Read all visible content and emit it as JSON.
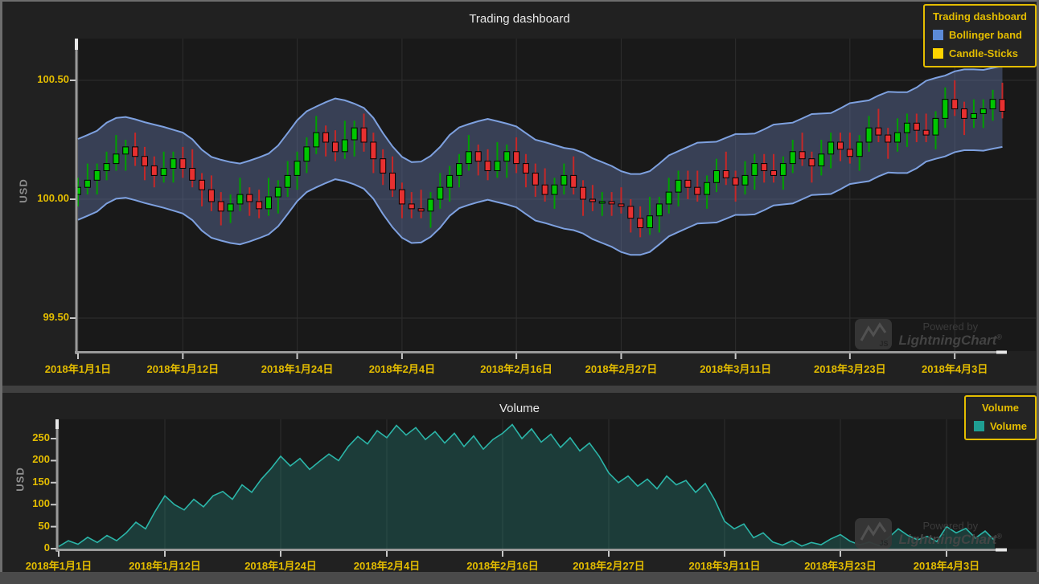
{
  "page": {
    "page_bg": "#4a4a4a",
    "panel_bg": "#212121",
    "plot_bg": "#191919",
    "frame_color": "#6e6e6e",
    "divider_color": "#404040",
    "grid_color": "#2e2e2e",
    "axis_line_color": "#9a9a9a",
    "axis_nib_color": "#e8e8e8",
    "tick_text_color": "#e4bd00",
    "title_text_color": "#e8e8e8"
  },
  "watermark": {
    "powered_by": "Powered by",
    "brand": "LightningChart",
    "reg": "®",
    "js_label": "JS"
  },
  "chart_data": [
    {
      "type": "candlestick",
      "title": "Trading dashboard",
      "y_axis": {
        "title": "USD",
        "range": [
          99.36,
          100.68
        ],
        "ticks": [
          {
            "value": 100.5,
            "label": "100.50"
          },
          {
            "value": 100.0,
            "label": "100.00"
          },
          {
            "value": 99.5,
            "label": "99.50"
          }
        ]
      },
      "x_axis": {
        "days": 98,
        "ticks": [
          {
            "day": 0,
            "label": "2018年1月1日"
          },
          {
            "day": 11,
            "label": "2018年1月12日"
          },
          {
            "day": 23,
            "label": "2018年1月24日"
          },
          {
            "day": 34,
            "label": "2018年2月4日"
          },
          {
            "day": 46,
            "label": "2018年2月16日"
          },
          {
            "day": 57,
            "label": "2018年2月27日"
          },
          {
            "day": 69,
            "label": "2018年3月11日"
          },
          {
            "day": 81,
            "label": "2018年3月23日"
          },
          {
            "day": 92,
            "label": "2018年4月3日"
          }
        ]
      },
      "legend": {
        "title": "Trading dashboard",
        "entries": [
          {
            "label": "Bollinger band",
            "color": "#5c8bd6"
          },
          {
            "label": "Candle-Sticks",
            "color": "#ffd400"
          }
        ]
      },
      "colors": {
        "up": "#00c600",
        "up_wick": "#00a000",
        "down": "#e83030",
        "down_wick": "#c62828",
        "band_line": "#7ea1e0",
        "band_fill": "rgba(99,120,170,0.42)"
      },
      "bollinger": {
        "window": 5,
        "offset": 0.17
      },
      "ohlc": [
        [
          100.02,
          100.09,
          99.97,
          100.05
        ],
        [
          100.05,
          100.15,
          100.02,
          100.08
        ],
        [
          100.08,
          100.15,
          100.02,
          100.12
        ],
        [
          100.12,
          100.2,
          100.08,
          100.15
        ],
        [
          100.15,
          100.27,
          100.12,
          100.19
        ],
        [
          100.19,
          100.25,
          100.12,
          100.22
        ],
        [
          100.22,
          100.28,
          100.14,
          100.18
        ],
        [
          100.18,
          100.22,
          100.08,
          100.14
        ],
        [
          100.14,
          100.18,
          100.05,
          100.1
        ],
        [
          100.1,
          100.2,
          100.07,
          100.13
        ],
        [
          100.13,
          100.2,
          100.07,
          100.17
        ],
        [
          100.17,
          100.22,
          100.09,
          100.13
        ],
        [
          100.13,
          100.21,
          100.05,
          100.08
        ],
        [
          100.08,
          100.11,
          99.97,
          100.04
        ],
        [
          100.04,
          100.1,
          99.95,
          99.99
        ],
        [
          99.99,
          100.03,
          99.89,
          99.95
        ],
        [
          99.95,
          100.02,
          99.9,
          99.98
        ],
        [
          99.98,
          100.09,
          99.95,
          100.02
        ],
        [
          100.02,
          100.05,
          99.93,
          99.99
        ],
        [
          99.99,
          100.04,
          99.92,
          99.96
        ],
        [
          99.96,
          100.09,
          99.93,
          100.01
        ],
        [
          100.01,
          100.08,
          99.94,
          100.05
        ],
        [
          100.05,
          100.16,
          100.01,
          100.1
        ],
        [
          100.1,
          100.2,
          100.04,
          100.16
        ],
        [
          100.16,
          100.26,
          100.11,
          100.22
        ],
        [
          100.22,
          100.35,
          100.19,
          100.28
        ],
        [
          100.28,
          100.31,
          100.18,
          100.24
        ],
        [
          100.24,
          100.29,
          100.16,
          100.2
        ],
        [
          100.2,
          100.33,
          100.17,
          100.25
        ],
        [
          100.25,
          100.33,
          100.18,
          100.3
        ],
        [
          100.3,
          100.36,
          100.2,
          100.24
        ],
        [
          100.24,
          100.28,
          100.11,
          100.17
        ],
        [
          100.17,
          100.21,
          100.06,
          100.11
        ],
        [
          100.11,
          100.18,
          100.01,
          100.04
        ],
        [
          100.04,
          100.07,
          99.92,
          99.98
        ],
        [
          99.98,
          100.03,
          99.92,
          99.96
        ],
        [
          99.96,
          100.04,
          99.92,
          99.95
        ],
        [
          99.95,
          100.03,
          99.88,
          100.0
        ],
        [
          100.0,
          100.11,
          99.96,
          100.05
        ],
        [
          100.05,
          100.14,
          99.99,
          100.1
        ],
        [
          100.1,
          100.19,
          100.05,
          100.15
        ],
        [
          100.15,
          100.27,
          100.12,
          100.2
        ],
        [
          100.2,
          100.23,
          100.1,
          100.16
        ],
        [
          100.16,
          100.21,
          100.08,
          100.12
        ],
        [
          100.12,
          100.24,
          100.09,
          100.16
        ],
        [
          100.16,
          100.23,
          100.09,
          100.2
        ],
        [
          100.2,
          100.26,
          100.11,
          100.15
        ],
        [
          100.15,
          100.19,
          100.05,
          100.11
        ],
        [
          100.11,
          100.15,
          100.01,
          100.06
        ],
        [
          100.06,
          100.13,
          99.99,
          100.02
        ],
        [
          100.02,
          100.09,
          99.96,
          100.06
        ],
        [
          100.06,
          100.15,
          100.02,
          100.1
        ],
        [
          100.1,
          100.18,
          100.02,
          100.05
        ],
        [
          100.05,
          100.08,
          99.93,
          100.0
        ],
        [
          100.0,
          100.06,
          99.95,
          99.99
        ],
        [
          99.99,
          100.03,
          99.93,
          99.99
        ],
        [
          99.99,
          100.03,
          99.93,
          99.98
        ],
        [
          99.98,
          100.05,
          99.94,
          99.97
        ],
        [
          99.97,
          100.0,
          99.86,
          99.92
        ],
        [
          99.92,
          99.97,
          99.84,
          99.88
        ],
        [
          99.88,
          100.01,
          99.85,
          99.93
        ],
        [
          99.93,
          100.01,
          99.86,
          99.98
        ],
        [
          99.98,
          100.09,
          99.94,
          100.03
        ],
        [
          100.03,
          100.12,
          99.97,
          100.08
        ],
        [
          100.08,
          100.12,
          100.0,
          100.05
        ],
        [
          100.05,
          100.12,
          99.99,
          100.02
        ],
        [
          100.02,
          100.1,
          99.96,
          100.07
        ],
        [
          100.07,
          100.17,
          100.03,
          100.12
        ],
        [
          100.12,
          100.2,
          100.06,
          100.09
        ],
        [
          100.09,
          100.12,
          99.99,
          100.06
        ],
        [
          100.06,
          100.16,
          100.02,
          100.1
        ],
        [
          100.1,
          100.19,
          100.04,
          100.15
        ],
        [
          100.15,
          100.19,
          100.07,
          100.12
        ],
        [
          100.12,
          100.19,
          100.07,
          100.1
        ],
        [
          100.1,
          100.18,
          100.04,
          100.15
        ],
        [
          100.15,
          100.25,
          100.11,
          100.2
        ],
        [
          100.2,
          100.28,
          100.14,
          100.17
        ],
        [
          100.17,
          100.2,
          100.07,
          100.14
        ],
        [
          100.14,
          100.25,
          100.1,
          100.19
        ],
        [
          100.19,
          100.28,
          100.13,
          100.24
        ],
        [
          100.24,
          100.28,
          100.16,
          100.21
        ],
        [
          100.21,
          100.28,
          100.15,
          100.18
        ],
        [
          100.18,
          100.27,
          100.12,
          100.24
        ],
        [
          100.24,
          100.35,
          100.2,
          100.3
        ],
        [
          100.3,
          100.38,
          100.24,
          100.27
        ],
        [
          100.27,
          100.3,
          100.17,
          100.24
        ],
        [
          100.24,
          100.34,
          100.2,
          100.28
        ],
        [
          100.28,
          100.36,
          100.22,
          100.32
        ],
        [
          100.32,
          100.36,
          100.24,
          100.29
        ],
        [
          100.29,
          100.36,
          100.24,
          100.27
        ],
        [
          100.27,
          100.37,
          100.21,
          100.34
        ],
        [
          100.34,
          100.47,
          100.3,
          100.42
        ],
        [
          100.42,
          100.5,
          100.35,
          100.38
        ],
        [
          100.38,
          100.41,
          100.27,
          100.34
        ],
        [
          100.34,
          100.42,
          100.3,
          100.36
        ],
        [
          100.36,
          100.42,
          100.3,
          100.38
        ],
        [
          100.38,
          100.46,
          100.33,
          100.42
        ],
        [
          100.42,
          100.49,
          100.34,
          100.37
        ]
      ]
    },
    {
      "type": "area",
      "title": "Volume",
      "y_axis": {
        "title": "USD",
        "range": [
          0,
          292
        ],
        "ticks": [
          {
            "value": 0,
            "label": "0"
          },
          {
            "value": 50,
            "label": "50"
          },
          {
            "value": 100,
            "label": "100"
          },
          {
            "value": 150,
            "label": "150"
          },
          {
            "value": 200,
            "label": "200"
          },
          {
            "value": 250,
            "label": "250"
          }
        ]
      },
      "x_axis": {
        "days": 98,
        "ticks": [
          {
            "day": 0,
            "label": "2018年1月1日"
          },
          {
            "day": 11,
            "label": "2018年1月12日"
          },
          {
            "day": 23,
            "label": "2018年1月24日"
          },
          {
            "day": 34,
            "label": "2018年2月4日"
          },
          {
            "day": 46,
            "label": "2018年2月16日"
          },
          {
            "day": 57,
            "label": "2018年2月27日"
          },
          {
            "day": 69,
            "label": "2018年3月11日"
          },
          {
            "day": 81,
            "label": "2018年3月23日"
          },
          {
            "day": 92,
            "label": "2018年4月3日"
          }
        ]
      },
      "legend": {
        "title": "Volume",
        "entries": [
          {
            "label": "Volume",
            "color": "#1f9e93"
          }
        ]
      },
      "colors": {
        "line": "#2bb5a8",
        "fill": "rgba(35,150,140,0.28)"
      },
      "values": [
        5,
        18,
        10,
        26,
        14,
        30,
        18,
        36,
        60,
        45,
        85,
        120,
        100,
        88,
        112,
        95,
        120,
        130,
        112,
        145,
        128,
        158,
        182,
        210,
        188,
        205,
        180,
        198,
        215,
        200,
        232,
        255,
        238,
        268,
        252,
        280,
        258,
        275,
        248,
        266,
        240,
        262,
        232,
        256,
        226,
        248,
        262,
        282,
        250,
        272,
        242,
        260,
        230,
        252,
        222,
        240,
        210,
        172,
        150,
        165,
        142,
        158,
        136,
        165,
        145,
        155,
        128,
        148,
        110,
        62,
        45,
        56,
        25,
        36,
        15,
        8,
        18,
        6,
        14,
        9,
        22,
        32,
        17,
        9,
        15,
        7,
        25,
        45,
        30,
        20,
        28,
        16,
        50,
        36,
        46,
        24,
        40,
        18
      ]
    }
  ]
}
